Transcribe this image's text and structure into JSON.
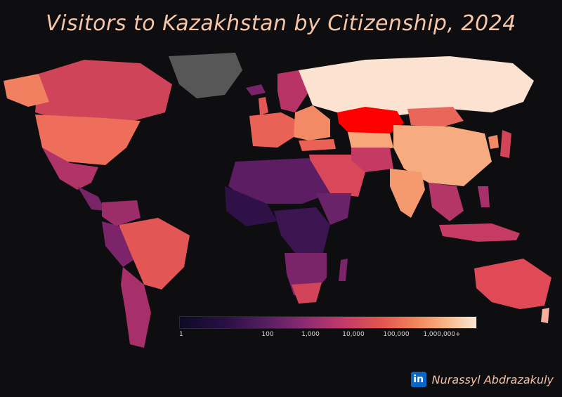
{
  "title": "Visitors to Kazakhstan by Citizenship, 2024",
  "legend": {
    "ticks": [
      "1",
      "100",
      "1,000",
      "10,000",
      "100,000",
      "1,000,000+"
    ]
  },
  "footer": {
    "icon": "linkedin-icon",
    "icon_text": "in",
    "author": "Nurassyl Abdrazakuly"
  },
  "colors": {
    "background": "#0e0d0f",
    "highlight_kazakhstan": "#ff0000",
    "no_data": "#555555",
    "scale_low": "#0d0a25",
    "scale_high": "#fce6d6"
  }
}
